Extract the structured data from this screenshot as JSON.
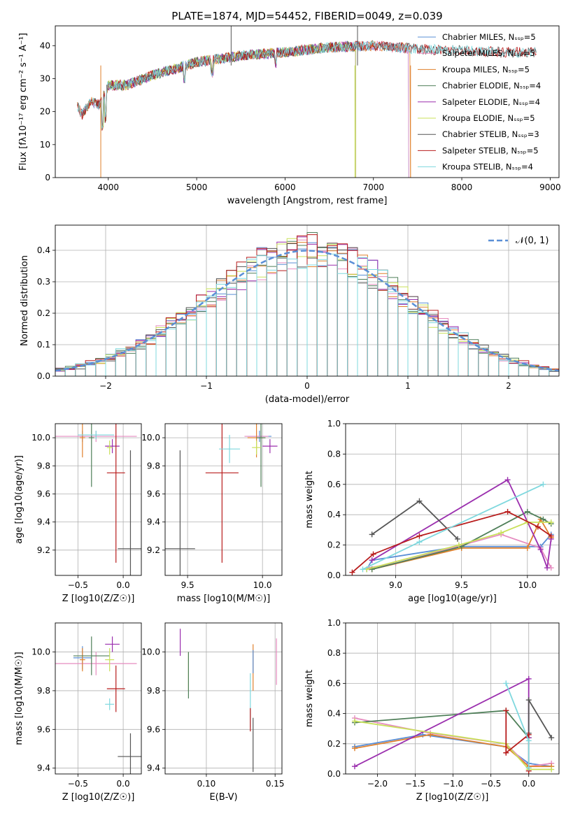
{
  "chart_data": [
    {
      "type": "line",
      "title": "PLATE=1874, MJD=54452, FIBERID=0049, z=0.039",
      "xlabel": "wavelength [Angstrom, rest frame]",
      "ylabel": "Flux [fλ10⁻¹⁷ erg cm⁻² s⁻¹ A⁻¹]",
      "xlim": [
        3400,
        9100
      ],
      "ylim": [
        0,
        46
      ],
      "xticks": [
        4000,
        5000,
        6000,
        7000,
        8000,
        9000
      ],
      "yticks": [
        0,
        10,
        20,
        30,
        40
      ],
      "grid": false,
      "legend": "top-right",
      "spectrum_anchors": {
        "x": [
          3650,
          3700,
          3800,
          3900,
          4000,
          4200,
          4500,
          5000,
          5500,
          6000,
          6500,
          7000,
          7500,
          8000,
          8500,
          8850
        ],
        "y": [
          22,
          19,
          23,
          22,
          28,
          28,
          31,
          35,
          37,
          38,
          39.5,
          40,
          39,
          38.5,
          38,
          38
        ]
      },
      "series": [
        {
          "name": "Chabrier MILES, N_SSP=5",
          "color": "#5a8fd6",
          "range": [
            3650,
            7400
          ]
        },
        {
          "name": "Salpeter MILES, N_SSP=5",
          "color": "#e68cc0",
          "range": [
            3650,
            7400
          ]
        },
        {
          "name": "Kroupa MILES, N_SSP=5",
          "color": "#e0802c",
          "range": [
            3650,
            7420
          ]
        },
        {
          "name": "Chabrier ELODIE, N_SSP=4",
          "color": "#4f7f59",
          "range": [
            3900,
            6800
          ]
        },
        {
          "name": "Salpeter ELODIE, N_SSP=4",
          "color": "#9b2fae",
          "range": [
            3900,
            6800
          ]
        },
        {
          "name": "Kroupa ELODIE, N_SSP=5",
          "color": "#c9e05a",
          "range": [
            3900,
            6800
          ]
        },
        {
          "name": "Chabrier STELIB, N_SSP=3",
          "color": "#555555",
          "range": [
            3650,
            8850
          ]
        },
        {
          "name": "Salpeter STELIB, N_SSP=5",
          "color": "#b81c1c",
          "range": [
            3650,
            8850
          ]
        },
        {
          "name": "Kroupa STELIB, N_SSP=4",
          "color": "#7fd8de",
          "range": [
            3650,
            8850
          ]
        }
      ]
    },
    {
      "type": "bar",
      "xlabel": "(data-model)/error",
      "ylabel": "Normed distribution",
      "xlim": [
        -2.5,
        2.5
      ],
      "ylim": [
        0,
        0.48
      ],
      "xticks": [
        -2,
        -1,
        0,
        1,
        2
      ],
      "yticks": [
        0.0,
        0.1,
        0.2,
        0.3,
        0.4
      ],
      "grid": true,
      "legend": "top-right",
      "bin_edges": [
        -2.5,
        2.5
      ],
      "n_bins": 50,
      "reference": {
        "name": "𝒩(0, 1)",
        "color": "#5a8fd6",
        "mean": 0,
        "std": 1
      }
    },
    {
      "type": "scatter",
      "xlabel": "Z [log10(Z/Z☉)]",
      "ylabel": "age  [log10(age/yr)]",
      "xlim": [
        -0.75,
        0.2
      ],
      "ylim": [
        9.02,
        10.1
      ],
      "xticks": [
        -0.5,
        0.0
      ],
      "yticks": [
        9.2,
        9.4,
        9.6,
        9.8,
        10.0
      ],
      "grid": true,
      "points": [
        {
          "x": -0.45,
          "y": 10.01,
          "xerr": 0.03,
          "yerr": 0.04,
          "color": "#5a8fd6"
        },
        {
          "x": -0.3,
          "y": 10.01,
          "xerr": 0.45,
          "yerr": 0.04,
          "color": "#e68cc0"
        },
        {
          "x": -0.45,
          "y": 10.0,
          "xerr": 0.03,
          "yerr": 0.14,
          "color": "#e0802c"
        },
        {
          "x": -0.35,
          "y": 10.0,
          "xerr": 0.03,
          "yerr": 0.35,
          "color": "#4f7f59"
        },
        {
          "x": -0.12,
          "y": 9.94,
          "xerr": 0.08,
          "yerr": 0.05,
          "color": "#9b2fae"
        },
        {
          "x": -0.15,
          "y": 9.93,
          "xerr": 0.03,
          "yerr": 0.05,
          "color": "#c9e05a"
        },
        {
          "x": 0.08,
          "y": 9.21,
          "xerr": 0.14,
          "yerr": 0.7,
          "color": "#555555"
        },
        {
          "x": -0.08,
          "y": 9.75,
          "xerr": 0.1,
          "yerr": 0.64,
          "color": "#b81c1c"
        },
        {
          "x": -0.3,
          "y": 10.02,
          "xerr": 0.2,
          "yerr": 0.03,
          "color": "#7fd8de"
        }
      ]
    },
    {
      "type": "scatter",
      "xlabel": "mass [log10(M/M☉)]",
      "ylabel": "",
      "xlim": [
        9.35,
        10.13
      ],
      "ylim": [
        9.02,
        10.1
      ],
      "xticks": [
        9.5,
        10.0
      ],
      "yticks": [
        9.2,
        9.4,
        9.6,
        9.8,
        10.0
      ],
      "grid": true,
      "points": [
        {
          "x": 9.98,
          "y": 10.01,
          "xerr": 0.08,
          "yerr": 0.04,
          "color": "#5a8fd6"
        },
        {
          "x": 9.96,
          "y": 10.01,
          "xerr": 0.08,
          "yerr": 0.04,
          "color": "#e68cc0"
        },
        {
          "x": 9.96,
          "y": 10.0,
          "xerr": 0.06,
          "yerr": 0.14,
          "color": "#e0802c"
        },
        {
          "x": 9.99,
          "y": 10.0,
          "xerr": 0.03,
          "yerr": 0.35,
          "color": "#4f7f59"
        },
        {
          "x": 10.05,
          "y": 9.94,
          "xerr": 0.05,
          "yerr": 0.05,
          "color": "#9b2fae"
        },
        {
          "x": 9.96,
          "y": 9.93,
          "xerr": 0.03,
          "yerr": 0.05,
          "color": "#c9e05a"
        },
        {
          "x": 9.45,
          "y": 9.21,
          "xerr": 0.1,
          "yerr": 0.7,
          "color": "#555555"
        },
        {
          "x": 9.73,
          "y": 9.75,
          "xerr": 0.11,
          "yerr": 0.64,
          "color": "#b81c1c"
        },
        {
          "x": 9.78,
          "y": 9.92,
          "xerr": 0.07,
          "yerr": 0.1,
          "color": "#7fd8de"
        }
      ]
    },
    {
      "type": "line",
      "xlabel": "age  [log10(age/yr)]",
      "ylabel": "mass weight",
      "xlim": [
        8.62,
        10.24
      ],
      "ylim": [
        0,
        1
      ],
      "xticks": [
        9.0,
        9.5,
        10.0
      ],
      "yticks": [
        0.0,
        0.2,
        0.4,
        0.6,
        0.8,
        1.0
      ],
      "grid": true,
      "series": [
        {
          "color": "#5a8fd6",
          "x": [
            8.78,
            8.82,
            9.48,
            10.1,
            10.18
          ],
          "y": [
            0.04,
            0.1,
            0.19,
            0.19,
            0.27
          ]
        },
        {
          "color": "#e68cc0",
          "x": [
            8.8,
            9.0,
            9.8,
            10.1,
            10.18
          ],
          "y": [
            0.05,
            0.08,
            0.27,
            0.18,
            0.05
          ]
        },
        {
          "color": "#e0802c",
          "x": [
            8.82,
            9.5,
            10.0,
            10.1,
            10.18
          ],
          "y": [
            0.04,
            0.18,
            0.18,
            0.37,
            0.25
          ]
        },
        {
          "color": "#4f7f59",
          "x": [
            8.82,
            9.5,
            10.0,
            10.12,
            10.18
          ],
          "y": [
            0.04,
            0.19,
            0.42,
            0.37,
            0.34
          ]
        },
        {
          "color": "#9b2fae",
          "x": [
            8.82,
            9.85,
            10.1,
            10.15,
            10.18
          ],
          "y": [
            0.1,
            0.63,
            0.17,
            0.05,
            0.24
          ]
        },
        {
          "color": "#c9e05a",
          "x": [
            8.78,
            9.48,
            9.8,
            10.0,
            10.18
          ],
          "y": [
            0.04,
            0.2,
            0.28,
            0.35,
            0.35
          ]
        },
        {
          "color": "#555555",
          "x": [
            8.82,
            9.18,
            9.47
          ],
          "y": [
            0.27,
            0.49,
            0.24
          ]
        },
        {
          "color": "#b81c1c",
          "x": [
            8.67,
            8.83,
            9.18,
            9.85,
            10.08,
            10.18
          ],
          "y": [
            0.02,
            0.14,
            0.26,
            0.42,
            0.32,
            0.26
          ]
        },
        {
          "color": "#7fd8de",
          "x": [
            8.75,
            9.18,
            10.12
          ],
          "y": [
            0.04,
            0.22,
            0.6
          ]
        }
      ]
    },
    {
      "type": "scatter",
      "xlabel": "Z [log10(Z/Z☉)]",
      "ylabel": "mass [log10(M/M☉)]",
      "xlim": [
        -0.75,
        0.2
      ],
      "ylim": [
        9.37,
        10.15
      ],
      "xticks": [
        -0.5,
        0.0
      ],
      "yticks": [
        9.4,
        9.6,
        9.8,
        10.0
      ],
      "grid": true,
      "points": [
        {
          "x": -0.45,
          "y": 9.97,
          "xerr": 0.1,
          "yerr": 0.06,
          "color": "#5a8fd6"
        },
        {
          "x": -0.3,
          "y": 9.94,
          "xerr": 0.45,
          "yerr": 0.06,
          "color": "#e68cc0"
        },
        {
          "x": -0.45,
          "y": 9.96,
          "xerr": 0.03,
          "yerr": 0.06,
          "color": "#e0802c"
        },
        {
          "x": -0.35,
          "y": 9.98,
          "xerr": 0.2,
          "yerr": 0.1,
          "color": "#4f7f59"
        },
        {
          "x": -0.12,
          "y": 10.04,
          "xerr": 0.08,
          "yerr": 0.04,
          "color": "#9b2fae"
        },
        {
          "x": -0.15,
          "y": 9.96,
          "xerr": 0.05,
          "yerr": 0.06,
          "color": "#c9e05a"
        },
        {
          "x": 0.08,
          "y": 9.46,
          "xerr": 0.14,
          "yerr": 0.12,
          "color": "#555555"
        },
        {
          "x": -0.08,
          "y": 9.81,
          "xerr": 0.1,
          "yerr": 0.12,
          "color": "#b81c1c"
        },
        {
          "x": -0.15,
          "y": 9.73,
          "xerr": 0.05,
          "yerr": 0.03,
          "color": "#7fd8de"
        }
      ]
    },
    {
      "type": "scatter",
      "xlabel": "E(B-V)",
      "ylabel": "",
      "xlim": [
        0.07,
        0.155
      ],
      "ylim": [
        9.37,
        10.15
      ],
      "xticks": [
        0.1,
        0.15
      ],
      "yticks": [
        9.4,
        9.6,
        9.8,
        10.0
      ],
      "grid": true,
      "points": [
        {
          "x": 0.081,
          "y": 10.05,
          "yerr": 0.07,
          "color": "#9b2fae"
        },
        {
          "x": 0.087,
          "y": 9.9,
          "yerr": 0.1,
          "color": "#c9e05a"
        },
        {
          "x": 0.087,
          "y": 9.88,
          "yerr": 0.12,
          "color": "#4f7f59"
        },
        {
          "x": 0.132,
          "y": 9.75,
          "yerr": 0.14,
          "color": "#7fd8de"
        },
        {
          "x": 0.132,
          "y": 9.65,
          "yerr": 0.06,
          "color": "#b81c1c"
        },
        {
          "x": 0.134,
          "y": 9.92,
          "yerr": 0.12,
          "color": "#e0802c"
        },
        {
          "x": 0.134,
          "y": 9.95,
          "yerr": 0.06,
          "color": "#5a8fd6"
        },
        {
          "x": 0.134,
          "y": 9.52,
          "yerr": 0.14,
          "color": "#555555"
        },
        {
          "x": 0.151,
          "y": 9.95,
          "yerr": 0.12,
          "color": "#e68cc0"
        }
      ]
    },
    {
      "type": "line",
      "xlabel": "Z [log10(Z/Z☉)]",
      "ylabel": "mass weight",
      "xlim": [
        -2.42,
        0.4
      ],
      "ylim": [
        0,
        1
      ],
      "xticks": [
        -2.0,
        -1.5,
        -1.0,
        -0.5,
        0.0
      ],
      "yticks": [
        0.0,
        0.2,
        0.4,
        0.6,
        0.8,
        1.0
      ],
      "grid": true,
      "series": [
        {
          "color": "#5a8fd6",
          "x": [
            -2.3,
            -1.4,
            -0.3,
            0.0,
            0.3
          ],
          "y": [
            0.18,
            0.26,
            0.18,
            0.07,
            0.05
          ]
        },
        {
          "color": "#e68cc0",
          "x": [
            -2.3,
            -1.3,
            -0.3,
            0.0,
            0.3
          ],
          "y": [
            0.37,
            0.27,
            0.2,
            0.05,
            0.07
          ]
        },
        {
          "color": "#e0802c",
          "x": [
            -2.3,
            -1.3,
            -0.3,
            0.0,
            0.3
          ],
          "y": [
            0.17,
            0.26,
            0.18,
            0.05,
            0.05
          ]
        },
        {
          "color": "#4f7f59",
          "x": [
            -2.3,
            -0.3,
            0.0
          ],
          "y": [
            0.34,
            0.42,
            0.24
          ]
        },
        {
          "color": "#9b2fae",
          "x": [
            -2.3,
            0.0,
            0.0
          ],
          "y": [
            0.05,
            0.63,
            0.24
          ]
        },
        {
          "color": "#c9e05a",
          "x": [
            -2.3,
            -0.3,
            0.0,
            0.3
          ],
          "y": [
            0.35,
            0.2,
            0.03,
            0.03
          ]
        },
        {
          "color": "#555555",
          "x": [
            0.0,
            0.0,
            0.3
          ],
          "y": [
            0.27,
            0.49,
            0.24
          ]
        },
        {
          "color": "#b81c1c",
          "x": [
            -0.3,
            -0.3,
            0.0,
            0.0
          ],
          "y": [
            0.42,
            0.14,
            0.26,
            0.02
          ]
        },
        {
          "color": "#7fd8de",
          "x": [
            -0.3,
            0.0,
            0.0
          ],
          "y": [
            0.6,
            0.22,
            0.04
          ]
        }
      ]
    }
  ]
}
